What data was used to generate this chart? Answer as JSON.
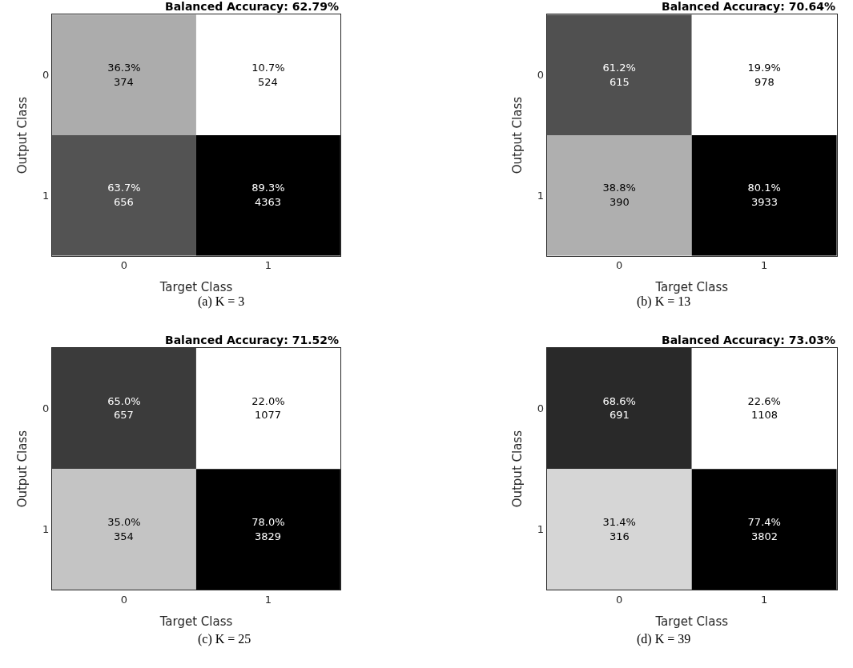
{
  "chart_data": [
    {
      "type": "heatmap",
      "title": "Balanced Accuracy: 62.79%",
      "xlabel": "Target Class",
      "ylabel": "Output Class",
      "categories": [
        "0",
        "1"
      ],
      "y_categories": [
        "0",
        "1"
      ],
      "cells": [
        [
          36.3,
          10.7
        ],
        [
          63.7,
          89.3
        ]
      ],
      "cell_labels": [
        [
          "36.3%",
          "10.7%"
        ],
        [
          "63.7%",
          "89.3%"
        ]
      ],
      "annotations": [
        "(a) K = 3",
        "374",
        "524",
        "656",
        "4363"
      ]
    },
    {
      "type": "heatmap",
      "title": "Balanced Accuracy: 70.64%",
      "xlabel": "Target Class",
      "ylabel": "Output Class",
      "categories": [
        "0",
        "1"
      ],
      "y_categories": [
        "0",
        "1"
      ],
      "cells": [
        [
          61.2,
          19.9
        ],
        [
          38.8,
          80.1
        ]
      ],
      "cell_labels": [
        [
          "61.2%",
          "19.9%"
        ],
        [
          "38.8%",
          "80.1%"
        ]
      ],
      "annotations": [
        "(b) K = 13",
        "615",
        "978",
        "390",
        "3933"
      ]
    },
    {
      "type": "heatmap",
      "title": "Balanced Accuracy: 71.52%",
      "xlabel": "Target Class",
      "ylabel": "Output Class",
      "categories": [
        "0",
        "1"
      ],
      "y_categories": [
        "0",
        "1"
      ],
      "cells": [
        [
          65.0,
          22.0
        ],
        [
          35.0,
          78.0
        ]
      ],
      "cell_labels": [
        [
          "65.0%",
          "22.0%"
        ],
        [
          "35.0%",
          "78.0%"
        ]
      ],
      "annotations": [
        "(c) K = 25",
        "657",
        "1077",
        "354",
        "3829"
      ]
    },
    {
      "type": "heatmap",
      "title": "Balanced Accuracy: 73.03%",
      "xlabel": "Target Class",
      "ylabel": "Output Class",
      "categories": [
        "0",
        "1"
      ],
      "y_categories": [
        "0",
        "1"
      ],
      "cells": [
        [
          68.6,
          22.6
        ],
        [
          31.4,
          77.4
        ]
      ],
      "cell_labels": [
        [
          "68.6%",
          "22.6%"
        ],
        [
          "31.4%",
          "77.4%"
        ]
      ],
      "annotations": [
        "(d) K = 39",
        "691",
        "1108",
        "316",
        "3802"
      ]
    }
  ]
}
